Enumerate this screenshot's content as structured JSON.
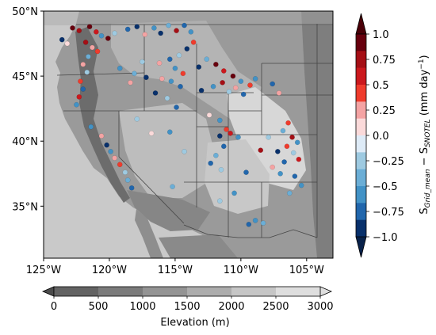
{
  "map": {
    "lon_ticks": [
      "125°W",
      "120°W",
      "115°W",
      "110°W",
      "105°W"
    ],
    "lat_ticks": [
      "50°N",
      "45°N",
      "40°N",
      "35°N"
    ],
    "extent": {
      "lon_min": -125,
      "lon_max": -103,
      "lat_min": 31,
      "lat_max": 50
    }
  },
  "elevation_colorbar": {
    "title": "Elevation (m)",
    "ticks": [
      "0",
      "500",
      "1000",
      "1500",
      "2000",
      "2500",
      "3000"
    ],
    "colors": [
      "#4b4b4b",
      "#636363",
      "#7b7b7b",
      "#949494",
      "#adadad",
      "#c6c6c6",
      "#dedede"
    ]
  },
  "diff_colorbar": {
    "label_main": "S",
    "label_sub1": "Grid_mean",
    "label_mid": " − S",
    "label_sub2": "SNOTEL",
    "label_units": " (mm day",
    "label_exp": "−1",
    "label_close": ")",
    "ticks": [
      "1.0",
      "0.75",
      "0.5",
      "0.25",
      "0.0",
      "−0.25",
      "−0.5",
      "−0.75",
      "−1.0"
    ],
    "colors": [
      "#67000d",
      "#a50f15",
      "#cb181d",
      "#ef3b2c",
      "#f4a3a3",
      "#fbdada",
      "#deebf7",
      "#9ecae1",
      "#6baed6",
      "#4292c6",
      "#2166ac",
      "#08306b"
    ]
  },
  "chart_data": {
    "type": "scatter",
    "x_axis": "longitude",
    "y_axis": "latitude",
    "value_range": [
      -1.0,
      1.0
    ],
    "points": [
      {
        "x": -122.8,
        "y": 48.7,
        "v": 0.9
      },
      {
        "x": -122.3,
        "y": 48.5,
        "v": 0.7
      },
      {
        "x": -121.5,
        "y": 48.8,
        "v": 0.95
      },
      {
        "x": -121.0,
        "y": 48.4,
        "v": 0.6
      },
      {
        "x": -120.6,
        "y": 48.1,
        "v": -0.6
      },
      {
        "x": -121.8,
        "y": 47.6,
        "v": 0.8
      },
      {
        "x": -121.3,
        "y": 47.2,
        "v": 0.3
      },
      {
        "x": -120.9,
        "y": 46.9,
        "v": 0.5
      },
      {
        "x": -121.6,
        "y": 46.5,
        "v": -0.4
      },
      {
        "x": -122.0,
        "y": 45.9,
        "v": 0.2
      },
      {
        "x": -121.7,
        "y": 45.3,
        "v": -0.3
      },
      {
        "x": -122.2,
        "y": 44.6,
        "v": 0.4
      },
      {
        "x": -122.0,
        "y": 44.0,
        "v": -0.8
      },
      {
        "x": -122.3,
        "y": 43.4,
        "v": 0.6
      },
      {
        "x": -122.5,
        "y": 42.8,
        "v": -0.5
      },
      {
        "x": -123.6,
        "y": 47.8,
        "v": -0.9
      },
      {
        "x": -123.2,
        "y": 47.5,
        "v": 0.1
      },
      {
        "x": -120.1,
        "y": 47.9,
        "v": 0.85
      },
      {
        "x": -119.6,
        "y": 48.3,
        "v": -0.2
      },
      {
        "x": -118.6,
        "y": 48.6,
        "v": -0.7
      },
      {
        "x": -117.9,
        "y": 48.8,
        "v": -0.85
      },
      {
        "x": -117.3,
        "y": 48.2,
        "v": 0.3
      },
      {
        "x": -116.6,
        "y": 48.7,
        "v": -0.6
      },
      {
        "x": -116.1,
        "y": 48.3,
        "v": -0.95
      },
      {
        "x": -115.5,
        "y": 48.9,
        "v": -0.4
      },
      {
        "x": -114.9,
        "y": 48.5,
        "v": 0.75
      },
      {
        "x": -114.3,
        "y": 48.9,
        "v": -0.8
      },
      {
        "x": -113.8,
        "y": 48.4,
        "v": -0.5
      },
      {
        "x": -113.6,
        "y": 47.6,
        "v": 0.5
      },
      {
        "x": -114.1,
        "y": 47.1,
        "v": -0.9
      },
      {
        "x": -114.7,
        "y": 46.6,
        "v": -0.3
      },
      {
        "x": -115.4,
        "y": 46.3,
        "v": -0.7
      },
      {
        "x": -116.2,
        "y": 46.0,
        "v": 0.2
      },
      {
        "x": -115.0,
        "y": 45.6,
        "v": -0.6
      },
      {
        "x": -114.4,
        "y": 45.2,
        "v": 0.4
      },
      {
        "x": -113.2,
        "y": 45.7,
        "v": -0.95
      },
      {
        "x": -112.6,
        "y": 46.3,
        "v": -0.4
      },
      {
        "x": -111.9,
        "y": 45.9,
        "v": 0.85
      },
      {
        "x": -111.3,
        "y": 45.4,
        "v": 0.6
      },
      {
        "x": -110.6,
        "y": 45.0,
        "v": 0.9
      },
      {
        "x": -110.0,
        "y": 44.6,
        "v": -0.5
      },
      {
        "x": -110.4,
        "y": 44.1,
        "v": 0.3
      },
      {
        "x": -109.8,
        "y": 43.6,
        "v": -0.8
      },
      {
        "x": -109.3,
        "y": 44.3,
        "v": 0.5
      },
      {
        "x": -110.9,
        "y": 43.8,
        "v": -0.2
      },
      {
        "x": -111.4,
        "y": 44.5,
        "v": 0.7
      },
      {
        "x": -112.1,
        "y": 44.2,
        "v": -0.6
      },
      {
        "x": -113.0,
        "y": 43.9,
        "v": -0.9
      },
      {
        "x": -114.6,
        "y": 44.2,
        "v": -0.7
      },
      {
        "x": -115.3,
        "y": 44.6,
        "v": -0.5
      },
      {
        "x": -116.0,
        "y": 44.8,
        "v": 0.3
      },
      {
        "x": -117.2,
        "y": 44.9,
        "v": -0.85
      },
      {
        "x": -118.1,
        "y": 45.2,
        "v": -0.4
      },
      {
        "x": -118.4,
        "y": 44.5,
        "v": 0.2
      },
      {
        "x": -119.2,
        "y": 45.6,
        "v": -0.6
      },
      {
        "x": -117.5,
        "y": 46.1,
        "v": -0.3
      },
      {
        "x": -116.5,
        "y": 43.7,
        "v": -0.9
      },
      {
        "x": -115.6,
        "y": 43.3,
        "v": -0.2
      },
      {
        "x": -114.9,
        "y": 42.6,
        "v": -0.7
      },
      {
        "x": -112.4,
        "y": 42.0,
        "v": 0.1
      },
      {
        "x": -111.6,
        "y": 41.6,
        "v": -0.5
      },
      {
        "x": -111.1,
        "y": 40.9,
        "v": 0.4
      },
      {
        "x": -111.6,
        "y": 40.4,
        "v": -0.9
      },
      {
        "x": -110.8,
        "y": 40.6,
        "v": 0.6
      },
      {
        "x": -110.2,
        "y": 40.3,
        "v": -0.6
      },
      {
        "x": -111.3,
        "y": 39.6,
        "v": -0.8
      },
      {
        "x": -111.9,
        "y": 38.9,
        "v": -0.4
      },
      {
        "x": -112.3,
        "y": 38.3,
        "v": -0.7
      },
      {
        "x": -111.5,
        "y": 37.8,
        "v": -0.3
      },
      {
        "x": -108.9,
        "y": 44.8,
        "v": -0.5
      },
      {
        "x": -107.6,
        "y": 44.4,
        "v": -0.8
      },
      {
        "x": -107.1,
        "y": 43.7,
        "v": 0.2
      },
      {
        "x": -106.4,
        "y": 41.4,
        "v": 0.5
      },
      {
        "x": -106.8,
        "y": 40.8,
        "v": -0.4
      },
      {
        "x": -106.1,
        "y": 40.3,
        "v": 0.8
      },
      {
        "x": -105.7,
        "y": 39.9,
        "v": -0.6
      },
      {
        "x": -106.5,
        "y": 39.6,
        "v": 0.4
      },
      {
        "x": -107.2,
        "y": 39.2,
        "v": -0.9
      },
      {
        "x": -106.0,
        "y": 39.1,
        "v": -0.3
      },
      {
        "x": -105.6,
        "y": 38.6,
        "v": 0.6
      },
      {
        "x": -106.7,
        "y": 38.4,
        "v": -0.7
      },
      {
        "x": -107.6,
        "y": 38.0,
        "v": 0.3
      },
      {
        "x": -107.0,
        "y": 37.5,
        "v": -0.5
      },
      {
        "x": -105.9,
        "y": 37.3,
        "v": -0.8
      },
      {
        "x": -105.4,
        "y": 36.6,
        "v": -0.6
      },
      {
        "x": -106.3,
        "y": 36.0,
        "v": -0.4
      },
      {
        "x": -108.5,
        "y": 39.3,
        "v": 0.7
      },
      {
        "x": -107.9,
        "y": 40.3,
        "v": -0.2
      },
      {
        "x": -109.6,
        "y": 37.6,
        "v": -0.7
      },
      {
        "x": -110.5,
        "y": 36.0,
        "v": -0.5
      },
      {
        "x": -111.6,
        "y": 35.4,
        "v": -0.3
      },
      {
        "x": -108.9,
        "y": 33.9,
        "v": -0.6
      },
      {
        "x": -109.4,
        "y": 33.6,
        "v": -0.8
      },
      {
        "x": -108.3,
        "y": 33.7,
        "v": -0.4
      },
      {
        "x": -120.2,
        "y": 39.7,
        "v": -0.95
      },
      {
        "x": -119.9,
        "y": 39.2,
        "v": -0.6
      },
      {
        "x": -119.6,
        "y": 38.7,
        "v": 0.2
      },
      {
        "x": -119.2,
        "y": 38.2,
        "v": 0.5
      },
      {
        "x": -118.8,
        "y": 37.6,
        "v": -0.2
      },
      {
        "x": -118.6,
        "y": 37.0,
        "v": -0.4
      },
      {
        "x": -118.3,
        "y": 36.4,
        "v": -0.7
      },
      {
        "x": -120.6,
        "y": 40.4,
        "v": 0.3
      },
      {
        "x": -121.4,
        "y": 41.1,
        "v": -0.5
      },
      {
        "x": -117.9,
        "y": 41.7,
        "v": -0.3
      },
      {
        "x": -116.8,
        "y": 40.6,
        "v": 0.1
      },
      {
        "x": -115.4,
        "y": 40.7,
        "v": -0.6
      },
      {
        "x": -114.3,
        "y": 39.2,
        "v": -0.2
      },
      {
        "x": -115.2,
        "y": 36.5,
        "v": -0.4
      }
    ]
  }
}
